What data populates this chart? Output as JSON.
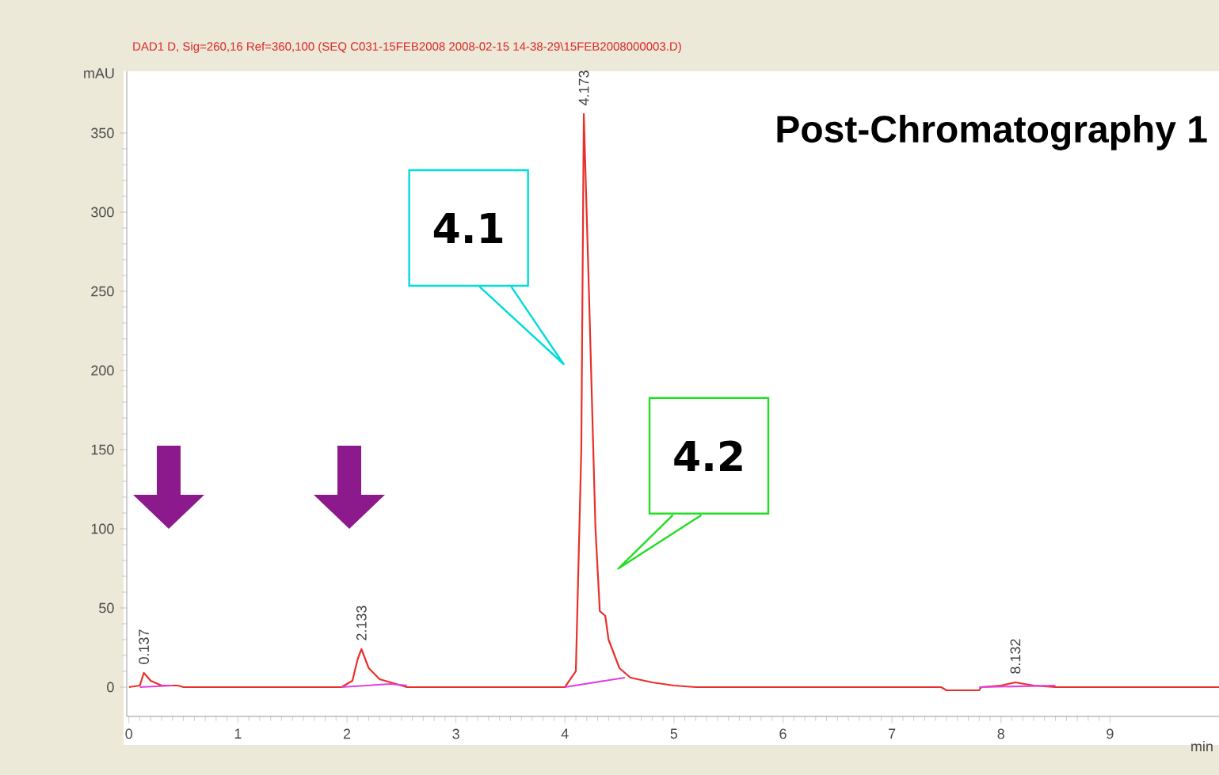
{
  "chart_data": {
    "type": "line",
    "title": "Post-Chromatography 1",
    "subtitle": "DAD1 D, Sig=260,16 Ref=360,100 (SEQ C031-15FEB2008 2008-02-15 14-38-29\\15FEB2008000003.D)",
    "xlabel": "min",
    "ylabel": "mAU",
    "xlim": [
      -0.02,
      10
    ],
    "ylim": [
      -18.5,
      389
    ],
    "xticks": [
      0,
      1,
      2,
      3,
      4,
      5,
      6,
      7,
      8,
      9
    ],
    "yticks": [
      0,
      50,
      100,
      150,
      200,
      250,
      300,
      350
    ],
    "series": [
      {
        "color": "#e8302a",
        "x": [
          0,
          0.1,
          0.137,
          0.2,
          0.3,
          0.45,
          0.5,
          1.95,
          2.05,
          2.1,
          2.133,
          2.2,
          2.3,
          2.45,
          2.55,
          4.0,
          4.1,
          4.15,
          4.173,
          4.22,
          4.28,
          4.32,
          4.37,
          4.4,
          4.5,
          4.6,
          4.8,
          5.0,
          5.2,
          7.45,
          7.5,
          7.8,
          7.82,
          8.0,
          8.132,
          8.3,
          8.5,
          10
        ],
        "values": [
          0,
          1,
          9,
          4,
          1,
          1,
          0,
          0,
          4,
          18,
          24,
          12,
          5,
          2,
          0,
          0,
          10,
          150,
          362,
          250,
          100,
          48,
          45,
          30,
          12,
          6,
          3,
          1,
          0,
          0,
          -2,
          -2,
          0,
          1,
          3,
          1,
          0,
          0
        ]
      },
      {
        "color": "#e040e0",
        "x": [
          0.1,
          0.4,
          0.45,
          1.95,
          2.4,
          2.55,
          2.6,
          4.0,
          4.55,
          4.6,
          7.8,
          8.5
        ],
        "values": [
          0,
          1,
          null,
          0,
          2,
          1,
          null,
          0,
          6,
          null,
          0,
          1
        ]
      }
    ],
    "annotations": [
      {
        "text": "0.137",
        "x": 0.137,
        "y": 9
      },
      {
        "text": "2.133",
        "x": 2.133,
        "y": 24
      },
      {
        "text": "4.173",
        "x": 4.173,
        "y": 362
      },
      {
        "text": "8.132",
        "x": 8.132,
        "y": 3
      },
      "4.1",
      "4.2"
    ]
  }
}
